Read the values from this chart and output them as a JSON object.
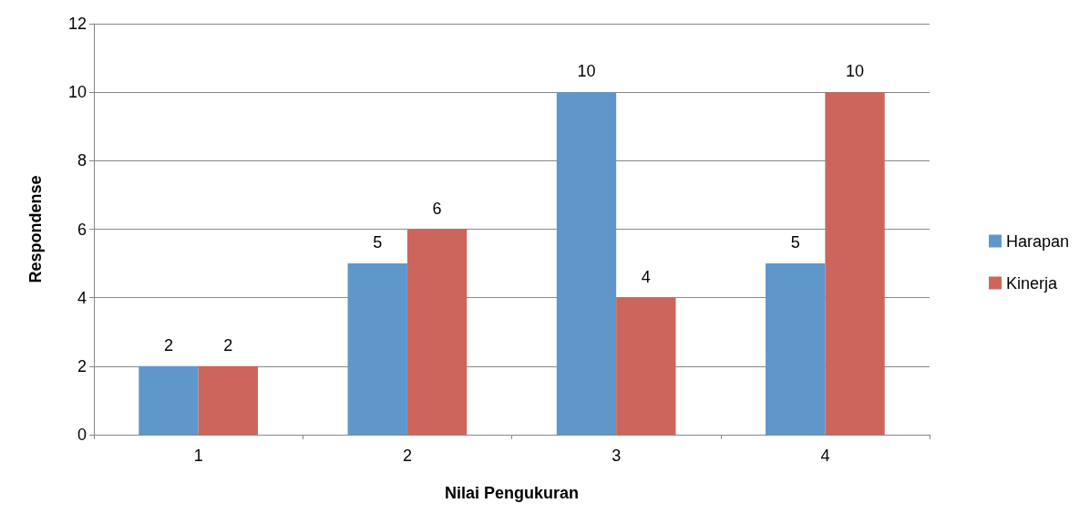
{
  "chart_data": {
    "type": "bar",
    "xlabel": "Nilai Pengukuran",
    "ylabel": "Respondense",
    "categories": [
      "1",
      "2",
      "3",
      "4"
    ],
    "series": [
      {
        "name": "Harapan",
        "color": "#6097cb",
        "values": [
          2,
          5,
          10,
          5
        ]
      },
      {
        "name": "Kinerja",
        "color": "#cc655c",
        "values": [
          2,
          6,
          4,
          10
        ]
      }
    ],
    "ylim": [
      0,
      12
    ],
    "yticks": [
      0,
      2,
      4,
      6,
      8,
      10,
      12
    ],
    "grid": "y",
    "legend": "right",
    "data_labels": true
  }
}
